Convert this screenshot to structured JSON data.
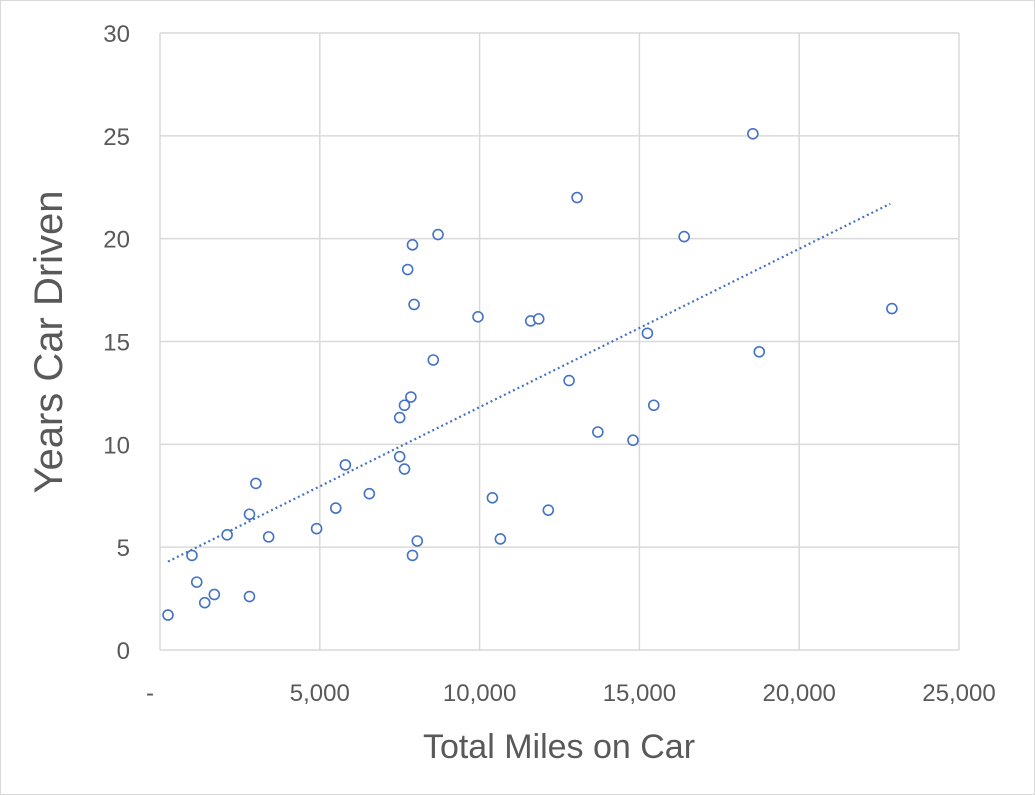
{
  "chart_data": {
    "type": "scatter",
    "title": "",
    "xlabel": "Total Miles on Car",
    "ylabel": "Years Car Driven",
    "xlim": [
      0,
      25000
    ],
    "ylim": [
      0,
      30
    ],
    "x_ticks": [
      0,
      5000,
      10000,
      15000,
      20000,
      25000
    ],
    "x_tick_labels": [
      "-",
      "5,000",
      "10,000",
      "15,000",
      "20,000",
      "25,000"
    ],
    "y_ticks": [
      0,
      5,
      10,
      15,
      20,
      25,
      30
    ],
    "y_tick_labels": [
      "0",
      "5",
      "10",
      "15",
      "20",
      "25",
      "30"
    ],
    "grid": true,
    "legend": false,
    "marker": "hollow-circle",
    "series": [
      {
        "points": [
          [
            250,
            1.7
          ],
          [
            1000,
            4.6
          ],
          [
            1150,
            3.3
          ],
          [
            1400,
            2.3
          ],
          [
            1700,
            2.7
          ],
          [
            2100,
            5.6
          ],
          [
            2800,
            6.6
          ],
          [
            2800,
            2.6
          ],
          [
            3000,
            8.1
          ],
          [
            3400,
            5.5
          ],
          [
            4900,
            5.9
          ],
          [
            5500,
            6.9
          ],
          [
            5800,
            9.0
          ],
          [
            6550,
            7.6
          ],
          [
            7500,
            11.3
          ],
          [
            7500,
            9.4
          ],
          [
            7650,
            11.9
          ],
          [
            7650,
            8.8
          ],
          [
            7750,
            18.5
          ],
          [
            7850,
            12.3
          ],
          [
            7900,
            19.7
          ],
          [
            7900,
            4.6
          ],
          [
            7950,
            16.8
          ],
          [
            8050,
            5.3
          ],
          [
            8550,
            14.1
          ],
          [
            8700,
            20.2
          ],
          [
            9950,
            16.2
          ],
          [
            10400,
            7.4
          ],
          [
            10650,
            5.4
          ],
          [
            11600,
            16.0
          ],
          [
            11850,
            16.1
          ],
          [
            12150,
            6.8
          ],
          [
            12800,
            13.1
          ],
          [
            13050,
            22.0
          ],
          [
            13700,
            10.6
          ],
          [
            14800,
            10.2
          ],
          [
            15250,
            15.4
          ],
          [
            15450,
            11.9
          ],
          [
            16400,
            20.1
          ],
          [
            18550,
            25.1
          ],
          [
            18750,
            14.5
          ],
          [
            22900,
            16.6
          ]
        ]
      }
    ],
    "trendline": {
      "type": "linear",
      "style": "dotted",
      "start": [
        250,
        4.3
      ],
      "end": [
        22850,
        21.7
      ]
    },
    "colors": {
      "marker": "#4472c4",
      "trendline": "#4472c4",
      "grid": "#d9d9d9",
      "text": "#595959"
    }
  }
}
